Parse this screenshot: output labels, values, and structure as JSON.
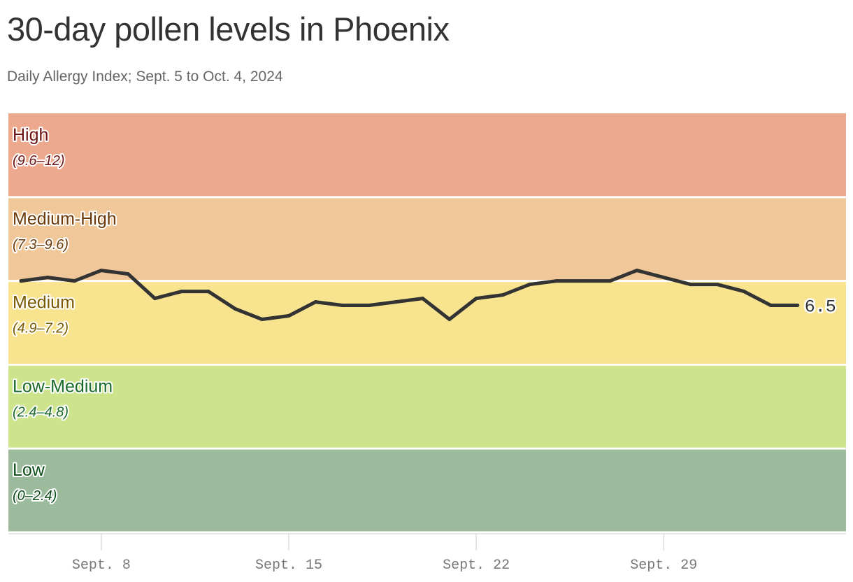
{
  "header": {
    "title": "30-day pollen levels in Phoenix",
    "subtitle": "Daily Allergy Index; Sept. 5 to Oct. 4, 2024"
  },
  "chart_data": {
    "type": "line",
    "title": "30-day pollen levels in Phoenix",
    "subtitle": "Daily Allergy Index; Sept. 5 to Oct. 4, 2024",
    "xlabel": "",
    "ylabel": "",
    "ylim": [
      0,
      12
    ],
    "grid": false,
    "x_ticks": [
      "Sept. 8",
      "Sept. 15",
      "Sept. 22",
      "Sept. 29"
    ],
    "bands": [
      {
        "label": "High",
        "range": "(9.6–12)",
        "min": 9.6,
        "max": 12,
        "color": "#eca98e",
        "text_color": "#6b1414"
      },
      {
        "label": "Medium-High",
        "range": "(7.3–9.6)",
        "min": 7.2,
        "max": 9.6,
        "color": "#f0c798",
        "text_color": "#6b3a0a"
      },
      {
        "label": "Medium",
        "range": "(4.9–7.2)",
        "min": 4.8,
        "max": 7.2,
        "color": "#f8e48f",
        "text_color": "#7a5a00"
      },
      {
        "label": "Low-Medium",
        "range": "(2.4–4.8)",
        "min": 2.4,
        "max": 4.8,
        "color": "#cde38c",
        "text_color": "#1a6b2a"
      },
      {
        "label": "Low",
        "range": "(0–2.4)",
        "min": 0,
        "max": 2.4,
        "color": "#9cba9c",
        "text_color": "#0d4d1a"
      }
    ],
    "series": [
      {
        "color": "#333333",
        "x": [
          "2024-09-05",
          "2024-09-06",
          "2024-09-07",
          "2024-09-08",
          "2024-09-09",
          "2024-09-10",
          "2024-09-11",
          "2024-09-12",
          "2024-09-13",
          "2024-09-14",
          "2024-09-15",
          "2024-09-16",
          "2024-09-17",
          "2024-09-18",
          "2024-09-19",
          "2024-09-20",
          "2024-09-21",
          "2024-09-22",
          "2024-09-23",
          "2024-09-24",
          "2024-09-25",
          "2024-09-26",
          "2024-09-27",
          "2024-09-28",
          "2024-09-29",
          "2024-09-30",
          "2024-10-01",
          "2024-10-02",
          "2024-10-03",
          "2024-10-04"
        ],
        "values": [
          7.2,
          7.3,
          7.2,
          7.5,
          7.4,
          6.7,
          6.9,
          6.9,
          6.4,
          6.1,
          6.2,
          6.6,
          6.5,
          6.5,
          6.6,
          6.7,
          6.1,
          6.7,
          6.8,
          7.1,
          7.2,
          7.2,
          7.2,
          7.5,
          7.3,
          7.1,
          7.1,
          6.9,
          6.5,
          6.5
        ]
      }
    ],
    "end_label": "6.5"
  }
}
